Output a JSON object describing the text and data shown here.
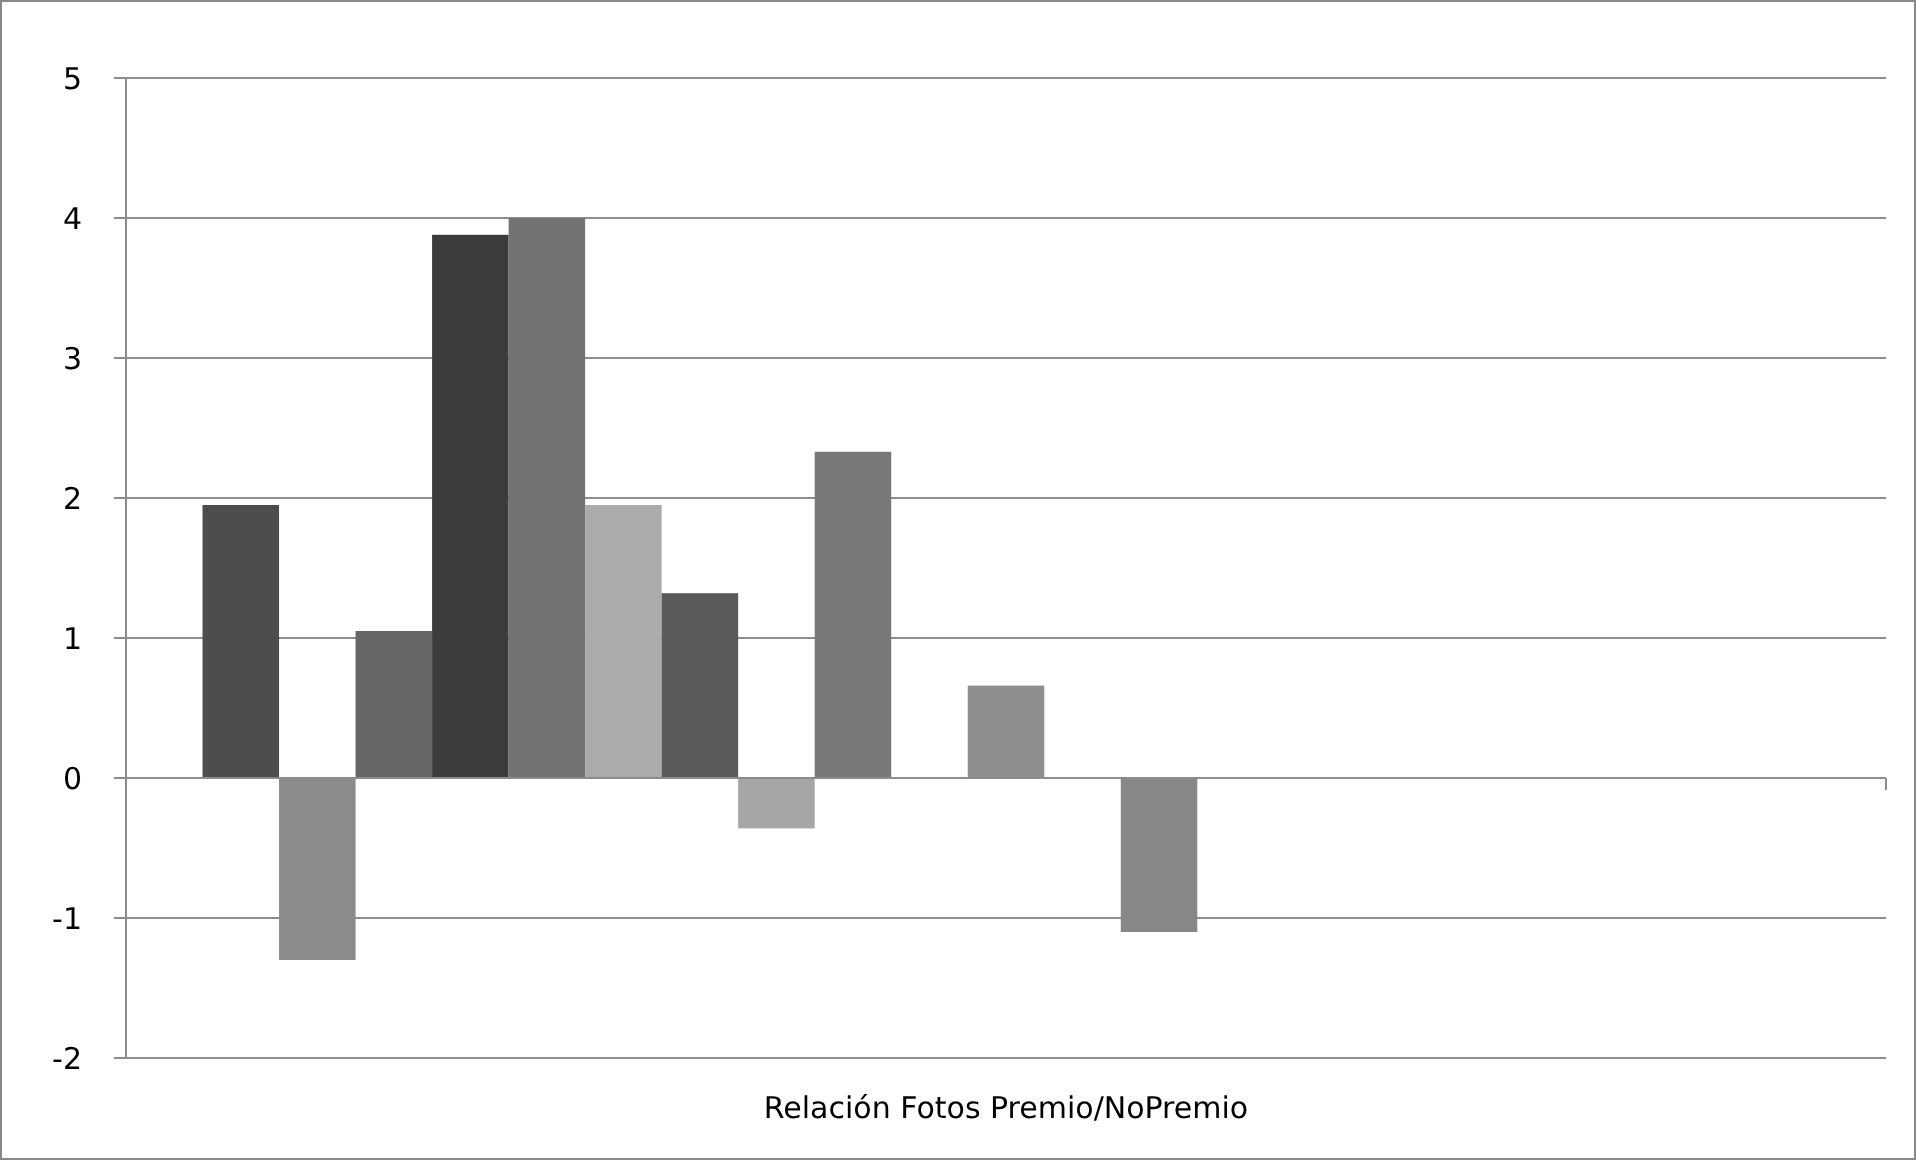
{
  "chart_data": {
    "type": "bar",
    "xlabel": "Relación Fotos Premio/NoPremio",
    "categories": [
      null,
      null,
      null,
      null,
      null,
      null,
      null,
      null,
      null,
      null,
      null,
      null,
      null,
      null,
      null,
      null,
      null,
      null,
      null,
      null,
      null,
      null,
      null
    ],
    "values": [
      null,
      1.95,
      -1.3,
      1.05,
      3.88,
      4.0,
      1.95,
      1.32,
      -0.36,
      2.33,
      null,
      0.66,
      null,
      -1.1,
      null,
      null,
      null,
      null,
      null,
      null,
      null,
      null,
      null
    ],
    "colors": [
      null,
      "#4d4d4d",
      "#8c8c8c",
      "#666666",
      "#3c3c3c",
      "#737373",
      "#ababab",
      "#5a5a5a",
      "#a6a6a6",
      "#787878",
      null,
      "#8e8e8e",
      null,
      "#878787",
      null,
      null,
      null,
      null,
      null,
      null,
      null,
      null,
      null
    ],
    "ylim": [
      -2,
      5
    ],
    "yticks": [
      -2,
      -1,
      0,
      1,
      2,
      3,
      4,
      5
    ],
    "grid": "y"
  }
}
